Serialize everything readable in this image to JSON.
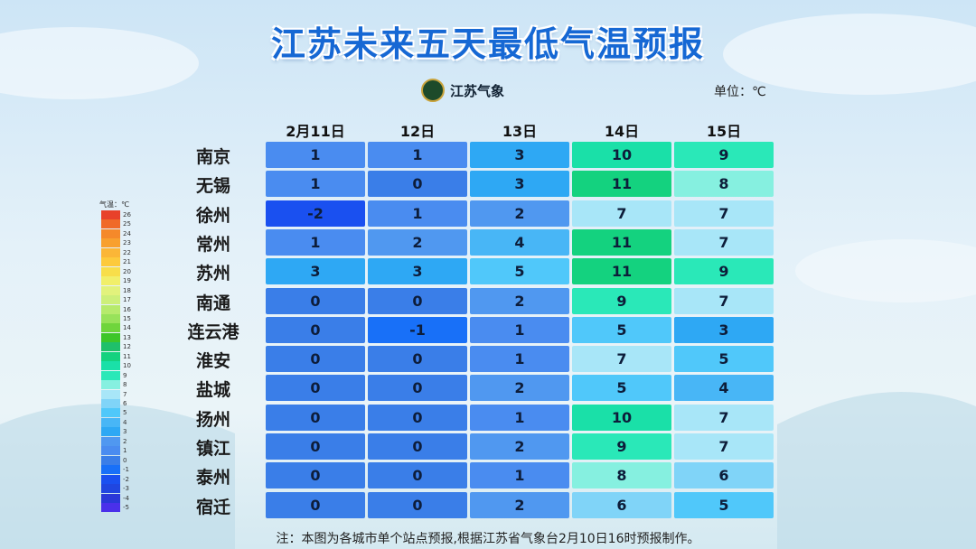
{
  "title": "江苏未来五天最低气温预报",
  "logo": "江苏气象",
  "unit": "单位：℃",
  "table": {
    "columns": [
      "2月11日",
      "12日",
      "13日",
      "14日",
      "15日"
    ],
    "rows": [
      {
        "city": "南京",
        "values": [
          1,
          1,
          3,
          10,
          9
        ]
      },
      {
        "city": "无锡",
        "values": [
          1,
          0,
          3,
          11,
          8
        ]
      },
      {
        "city": "徐州",
        "values": [
          -2,
          1,
          2,
          7,
          7
        ]
      },
      {
        "city": "常州",
        "values": [
          1,
          2,
          4,
          11,
          7
        ]
      },
      {
        "city": "苏州",
        "values": [
          3,
          3,
          5,
          11,
          9
        ]
      },
      {
        "city": "南通",
        "values": [
          0,
          0,
          2,
          9,
          7
        ]
      },
      {
        "city": "连云港",
        "values": [
          0,
          -1,
          1,
          5,
          3
        ]
      },
      {
        "city": "淮安",
        "values": [
          0,
          0,
          1,
          7,
          5
        ]
      },
      {
        "city": "盐城",
        "values": [
          0,
          0,
          2,
          5,
          4
        ]
      },
      {
        "city": "扬州",
        "values": [
          0,
          0,
          1,
          10,
          7
        ]
      },
      {
        "city": "镇江",
        "values": [
          0,
          0,
          2,
          9,
          7
        ]
      },
      {
        "city": "泰州",
        "values": [
          0,
          0,
          1,
          8,
          6
        ]
      },
      {
        "city": "宿迁",
        "values": [
          0,
          0,
          2,
          6,
          5
        ]
      }
    ]
  },
  "legend": {
    "title": "气温：℃",
    "items": [
      {
        "value": 26,
        "color": "#e8412a"
      },
      {
        "value": 25,
        "color": "#f06a28"
      },
      {
        "value": 24,
        "color": "#f5892a"
      },
      {
        "value": 23,
        "color": "#f8a02e"
      },
      {
        "value": 22,
        "color": "#fbb637"
      },
      {
        "value": 21,
        "color": "#fdca3c"
      },
      {
        "value": 20,
        "color": "#f8de4a"
      },
      {
        "value": 19,
        "color": "#f1ef6a"
      },
      {
        "value": 18,
        "color": "#e2f27c"
      },
      {
        "value": 17,
        "color": "#cdef7a"
      },
      {
        "value": 16,
        "color": "#b6ea6c"
      },
      {
        "value": 15,
        "color": "#98e25a"
      },
      {
        "value": 14,
        "color": "#6fd53c"
      },
      {
        "value": 13,
        "color": "#3dc628"
      },
      {
        "value": 12,
        "color": "#1fc06a"
      },
      {
        "value": 11,
        "color": "#14d27f"
      },
      {
        "value": 10,
        "color": "#1ae0a8"
      },
      {
        "value": 9,
        "color": "#2ae8b8"
      },
      {
        "value": 8,
        "color": "#86f0e0"
      },
      {
        "value": 7,
        "color": "#a8e6f8"
      },
      {
        "value": 6,
        "color": "#80d4f8"
      },
      {
        "value": 5,
        "color": "#50c8fa"
      },
      {
        "value": 4,
        "color": "#48b6f6"
      },
      {
        "value": 3,
        "color": "#2ea8f4"
      },
      {
        "value": 2,
        "color": "#5098f0"
      },
      {
        "value": 1,
        "color": "#4a8cf0"
      },
      {
        "value": 0,
        "color": "#3a7ee8"
      },
      {
        "value": -1,
        "color": "#1870f8"
      },
      {
        "value": -2,
        "color": "#1a50f0"
      },
      {
        "value": -3,
        "color": "#2046e0"
      },
      {
        "value": -4,
        "color": "#2a38d8"
      },
      {
        "value": -5,
        "color": "#4a30ea"
      }
    ]
  },
  "note": "注：本图为各城市单个站点预报,根据江苏省气象台2月10日16时预报制作。"
}
